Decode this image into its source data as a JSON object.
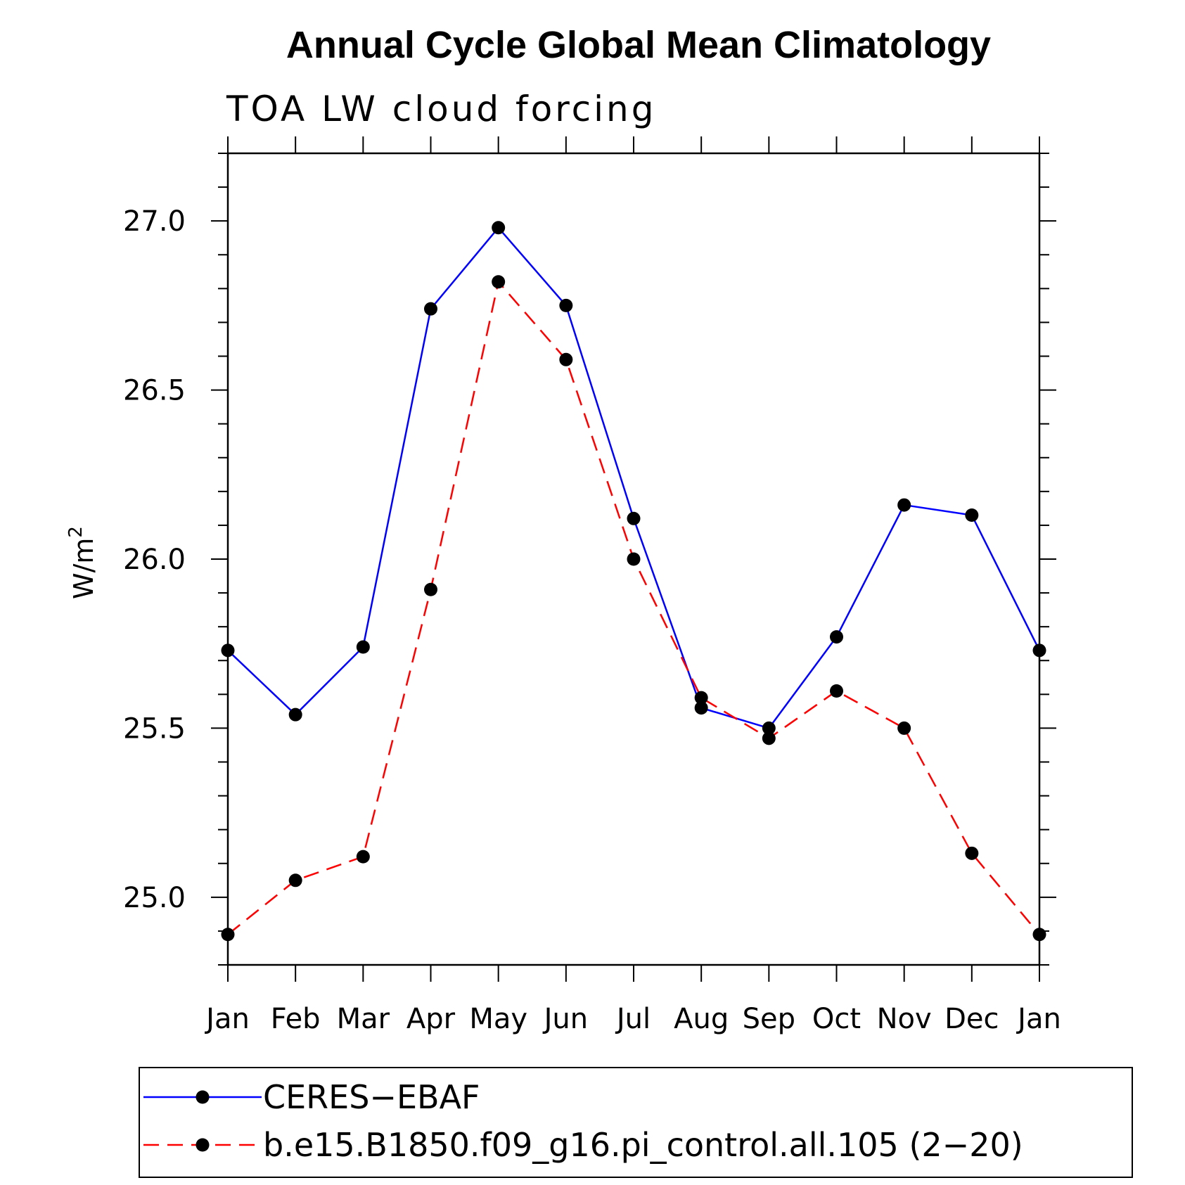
{
  "chart_data": {
    "type": "line",
    "title": "Annual Cycle Global Mean Climatology",
    "subtitle": "TOA LW cloud forcing",
    "ylabel": "W/m",
    "ylabel_superscript": "2",
    "ylim": [
      24.8,
      27.2
    ],
    "yticks": [
      "25.0",
      "25.5",
      "26.0",
      "26.5",
      "27.0"
    ],
    "categories": [
      "Jan",
      "Feb",
      "Mar",
      "Apr",
      "May",
      "Jun",
      "Jul",
      "Aug",
      "Sep",
      "Oct",
      "Nov",
      "Dec",
      "Jan"
    ],
    "series": [
      {
        "name": "CERES−EBAF",
        "color": "#0000ff",
        "dashed": false,
        "values": [
          25.73,
          25.54,
          25.74,
          26.74,
          26.98,
          26.75,
          26.12,
          25.56,
          25.5,
          25.77,
          26.16,
          26.13,
          25.73
        ]
      },
      {
        "name": "b.e15.B1850.f09_g16.pi_control.all.105 (2−20)",
        "color": "#ff0000",
        "dashed": true,
        "values": [
          24.89,
          25.05,
          25.12,
          25.91,
          26.82,
          26.59,
          26.0,
          25.59,
          25.47,
          25.61,
          25.5,
          25.13,
          24.89
        ]
      }
    ],
    "grid": false,
    "legend_position": "bottom"
  }
}
